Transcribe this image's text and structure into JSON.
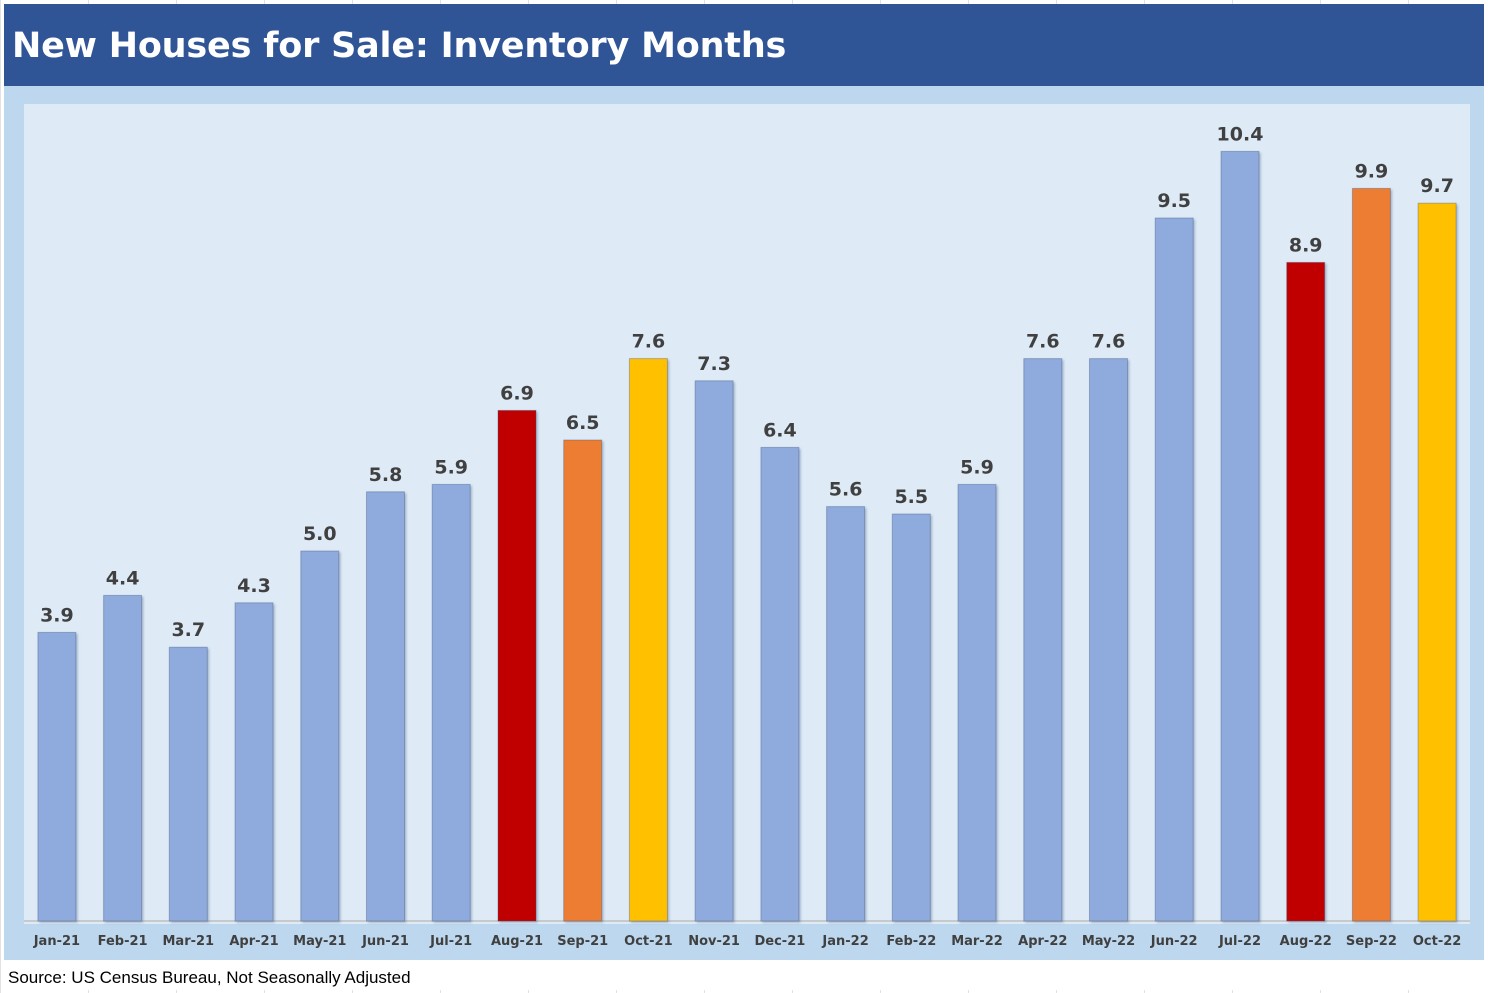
{
  "colors": {
    "header_bg": "#2f5597",
    "frame_bg": "#bdd7ee",
    "plot_bg": "#deebf7",
    "bar_default": "#8faadc",
    "bar_aug": "#c00000",
    "bar_sep": "#ed7d31",
    "bar_oct": "#ffc000",
    "label_text": "#404040"
  },
  "header": {
    "title": "New Houses for Sale: Inventory Months"
  },
  "footer": {
    "source": "Source: US Census Bureau, Not Seasonally Adjusted"
  },
  "chart_data": {
    "type": "bar",
    "title": "New Houses for Sale: Inventory Months",
    "xlabel": "",
    "ylabel": "",
    "ylim": [
      0,
      11.2
    ],
    "grid": false,
    "legend": "none",
    "categories": [
      "Jan-21",
      "Feb-21",
      "Mar-21",
      "Apr-21",
      "May-21",
      "Jun-21",
      "Jul-21",
      "Aug-21",
      "Sep-21",
      "Oct-21",
      "Nov-21",
      "Dec-21",
      "Jan-22",
      "Feb-22",
      "Mar-22",
      "Apr-22",
      "May-22",
      "Jun-22",
      "Jul-22",
      "Aug-22",
      "Sep-22",
      "Oct-22"
    ],
    "values": [
      3.9,
      4.4,
      3.7,
      4.3,
      5.0,
      5.8,
      5.9,
      6.9,
      6.5,
      7.6,
      7.3,
      6.4,
      5.6,
      5.5,
      5.9,
      7.6,
      7.6,
      9.5,
      10.4,
      8.9,
      9.9,
      9.7
    ],
    "data_labels": [
      "3.9",
      "4.4",
      "3.7",
      "4.3",
      "5.0",
      "5.8",
      "5.9",
      "6.9",
      "6.5",
      "7.6",
      "7.3",
      "6.4",
      "5.6",
      "5.5",
      "5.9",
      "7.6",
      "7.6",
      "9.5",
      "10.4",
      "8.9",
      "9.9",
      "9.7"
    ],
    "bar_colors": [
      "#8faadc",
      "#8faadc",
      "#8faadc",
      "#8faadc",
      "#8faadc",
      "#8faadc",
      "#8faadc",
      "#c00000",
      "#ed7d31",
      "#ffc000",
      "#8faadc",
      "#8faadc",
      "#8faadc",
      "#8faadc",
      "#8faadc",
      "#8faadc",
      "#8faadc",
      "#8faadc",
      "#8faadc",
      "#c00000",
      "#ed7d31",
      "#ffc000"
    ]
  }
}
